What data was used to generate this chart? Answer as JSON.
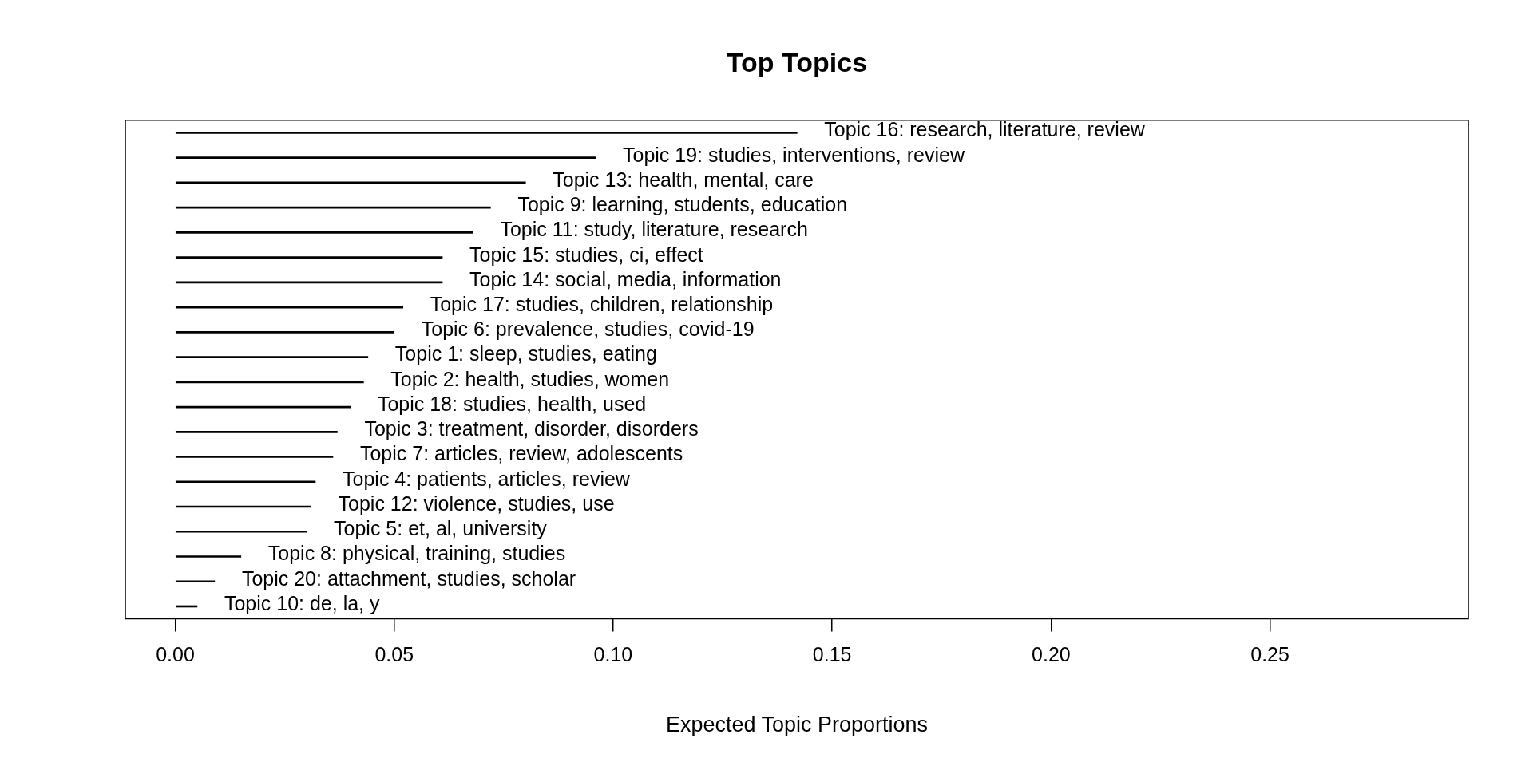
{
  "chart_data": {
    "type": "bar",
    "orientation": "horizontal",
    "title": "Top Topics",
    "xlabel": "Expected Topic Proportions",
    "categories": [
      "Topic 16: research, literature, review",
      "Topic 19: studies, interventions, review",
      "Topic 13: health, mental, care",
      "Topic 9: learning, students, education",
      "Topic 11: study, literature, research",
      "Topic 15: studies, ci, effect",
      "Topic 14: social, media, information",
      "Topic 17: studies, children, relationship",
      "Topic 6: prevalence, studies, covid-19",
      "Topic 1: sleep, studies, eating",
      "Topic 2: health, studies, women",
      "Topic 18: studies, health, used",
      "Topic 3: treatment, disorder, disorders",
      "Topic 7: articles, review, adolescents",
      "Topic 4: patients, articles, review",
      "Topic 12: violence, studies, use",
      "Topic 5: et, al, university",
      "Topic 8: physical, training, studies",
      "Topic 20: attachment, studies, scholar",
      "Topic 10: de, la, y"
    ],
    "values": [
      0.142,
      0.096,
      0.08,
      0.072,
      0.068,
      0.061,
      0.061,
      0.052,
      0.05,
      0.044,
      0.043,
      0.04,
      0.037,
      0.036,
      0.032,
      0.031,
      0.03,
      0.015,
      0.009,
      0.005
    ],
    "color": "#000000",
    "xlim": [
      -0.0114,
      0.2953
    ],
    "xticks": [
      {
        "value": 0,
        "label": "0.00"
      },
      {
        "value": 0.05,
        "label": "0.05"
      },
      {
        "value": 0.1,
        "label": "0.10"
      },
      {
        "value": 0.15,
        "label": "0.15"
      },
      {
        "value": 0.2,
        "label": "0.20"
      },
      {
        "value": 0.25,
        "label": "0.25"
      }
    ],
    "grid": false,
    "legend": false
  }
}
